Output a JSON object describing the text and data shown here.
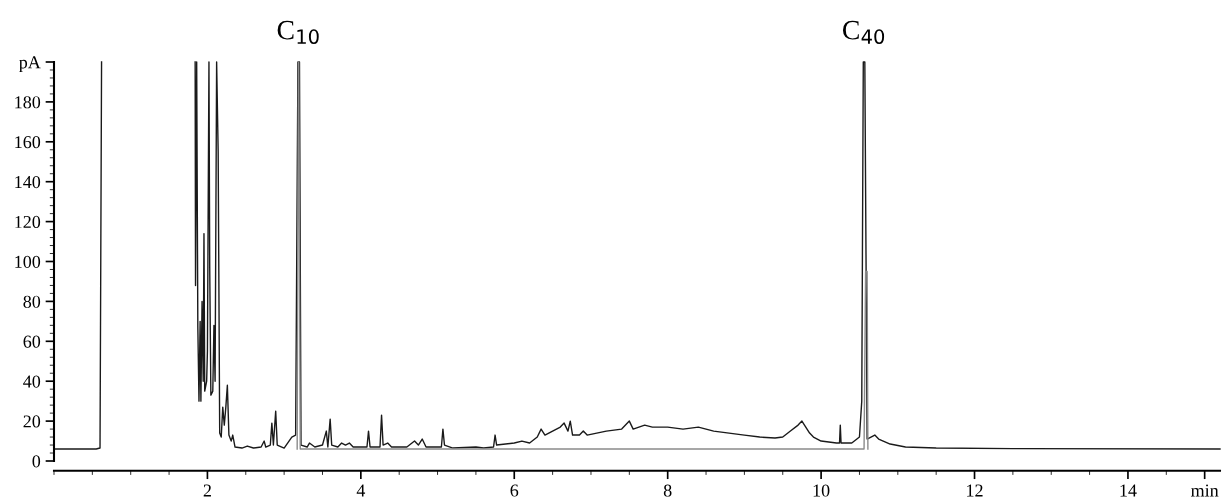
{
  "chart_data": {
    "type": "line",
    "xlim": [
      0,
      15.2
    ],
    "ylim": [
      0,
      200
    ],
    "xticks": [
      2,
      4,
      6,
      8,
      10,
      12,
      14,
      {
        "value": 15,
        "label": "min"
      }
    ],
    "yticks": [
      0,
      20,
      40,
      60,
      80,
      100,
      120,
      140,
      160,
      180,
      {
        "value": 200,
        "label": "pA"
      }
    ],
    "grid": false,
    "legend": false,
    "marker": "none",
    "line_style": "solid",
    "annotations": [
      {
        "text": "C$_{10}$",
        "x": 3.19,
        "y": 200
      },
      {
        "text": "C$_{40}$",
        "x": 10.56,
        "y": 200
      }
    ],
    "series": [
      {
        "color": "#1a1a1a",
        "x": [
          0,
          0.55,
          0.6,
          0.62,
          0.64,
          1.84,
          1.845,
          1.86,
          1.875,
          1.89,
          1.905,
          1.915,
          1.93,
          1.945,
          1.955,
          1.965,
          1.99,
          2.0,
          2.02,
          2.03,
          2.045,
          2.07,
          2.085,
          2.1,
          2.12,
          2.14,
          2.16,
          2.18,
          2.2,
          2.22,
          2.24,
          2.26,
          2.28,
          2.31,
          2.33,
          2.36,
          2.45,
          2.52,
          2.6,
          2.7,
          2.74,
          2.76,
          2.82,
          2.84,
          2.86,
          2.89,
          2.91,
          3.0,
          3.1,
          3.15,
          3.18,
          3.2,
          3.22,
          3.3,
          3.33,
          3.4,
          3.5,
          3.55,
          3.57,
          3.6,
          3.62,
          3.7,
          3.75,
          3.8,
          3.85,
          3.9,
          4.08,
          4.1,
          4.12,
          4.25,
          4.27,
          4.29,
          4.35,
          4.4,
          4.6,
          4.7,
          4.75,
          4.8,
          4.85,
          5.05,
          5.07,
          5.09,
          5.2,
          5.5,
          5.6,
          5.73,
          5.75,
          5.77,
          6.0,
          6.1,
          6.2,
          6.3,
          6.35,
          6.4,
          6.5,
          6.6,
          6.65,
          6.7,
          6.73,
          6.76,
          6.85,
          6.9,
          6.95,
          7.2,
          7.4,
          7.5,
          7.55,
          7.7,
          7.8,
          8.0,
          8.2,
          8.4,
          8.6,
          8.8,
          9.0,
          9.2,
          9.4,
          9.5,
          9.6,
          9.7,
          9.75,
          9.8,
          9.85,
          9.9,
          10.0,
          10.1,
          10.2,
          10.24,
          10.25,
          10.26,
          10.4,
          10.5,
          10.53,
          10.55,
          10.57,
          10.6,
          10.65,
          10.7,
          10.75,
          10.9,
          11.1,
          11.5,
          12.5,
          15.2
        ],
        "values": [
          6,
          6,
          6.5,
          200,
          null,
          200,
          88,
          200,
          67,
          30,
          70,
          30,
          80,
          40,
          114,
          35,
          40,
          55,
          200,
          97,
          33,
          35,
          68,
          40,
          200,
          155,
          14,
          12,
          27,
          18,
          27,
          38,
          13,
          10,
          13,
          7,
          6.5,
          7.5,
          6.5,
          7,
          10,
          7,
          8,
          19,
          8,
          25,
          8,
          6.5,
          12,
          13,
          200,
          200,
          8,
          7,
          9,
          7,
          8,
          15,
          7,
          21,
          8,
          7,
          9,
          8,
          9,
          7,
          7,
          15,
          7,
          7,
          23,
          8,
          9,
          7,
          7,
          10,
          8,
          11,
          7,
          7,
          16,
          8,
          6.5,
          7,
          6.5,
          7,
          13,
          8,
          9,
          10,
          9,
          12,
          16,
          13,
          15,
          17,
          19,
          15,
          20,
          13,
          13,
          15,
          13,
          15,
          16,
          20,
          16,
          18,
          17,
          17,
          16,
          17,
          15,
          14,
          13,
          12,
          11.5,
          12,
          15,
          18,
          20,
          17,
          14,
          12,
          10,
          9.5,
          9,
          9,
          18,
          9,
          9,
          12,
          30,
          200,
          200,
          11,
          12,
          13,
          11,
          8.5,
          7,
          6.5,
          6.2,
          6
        ]
      },
      {
        "color": "#8a8a8a",
        "x": [
          3.17,
          3.185,
          3.19,
          3.21,
          10.5,
          10.56,
          10.58,
          10.6,
          10.61
        ],
        "values": [
          6,
          183,
          200,
          6,
          6,
          6,
          95,
          95,
          6
        ]
      }
    ]
  }
}
